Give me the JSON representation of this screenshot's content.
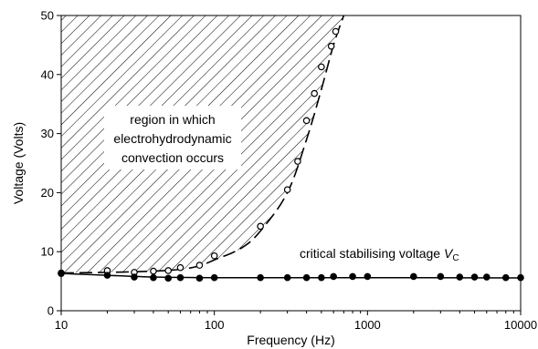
{
  "chart_data": {
    "type": "scatter",
    "title": "",
    "xlabel": "Frequency (Hz)",
    "ylabel": "Voltage (Volts)",
    "xscale": "log",
    "xlim": [
      10,
      10000
    ],
    "ylim": [
      0,
      50
    ],
    "x_ticks": [
      10,
      100,
      1000,
      10000
    ],
    "x_tick_labels": [
      "10",
      "100",
      "1000",
      "10000"
    ],
    "y_ticks": [
      0,
      10,
      20,
      30,
      40,
      50
    ],
    "y_tick_labels": [
      "0",
      "10",
      "20",
      "30",
      "40",
      "50"
    ],
    "grid": false,
    "annotations": {
      "region_lines": [
        "region in which",
        "electrohydrodynamic",
        "convection occurs"
      ],
      "critical_label": "critical stabilising voltage ",
      "critical_symbol": "V",
      "critical_subscript": "C"
    },
    "series": [
      {
        "marker": "open-circle",
        "points": [
          [
            10,
            6.4
          ],
          [
            20,
            6.8
          ],
          [
            30,
            6.5
          ],
          [
            40,
            6.7
          ],
          [
            50,
            6.8
          ],
          [
            60,
            7.3
          ],
          [
            80,
            7.7
          ],
          [
            100,
            9.3
          ],
          [
            200,
            14.3
          ],
          [
            300,
            20.5
          ],
          [
            350,
            25.3
          ],
          [
            400,
            32.2
          ],
          [
            450,
            36.8
          ],
          [
            500,
            41.3
          ],
          [
            580,
            44.8
          ],
          [
            620,
            47.3
          ]
        ]
      },
      {
        "marker": "filled-circle",
        "points": [
          [
            10,
            6.3
          ],
          [
            20,
            6.0
          ],
          [
            30,
            5.7
          ],
          [
            40,
            5.6
          ],
          [
            50,
            5.5
          ],
          [
            60,
            5.6
          ],
          [
            80,
            5.5
          ],
          [
            100,
            5.6
          ],
          [
            200,
            5.6
          ],
          [
            300,
            5.6
          ],
          [
            400,
            5.6
          ],
          [
            500,
            5.6
          ],
          [
            600,
            5.8
          ],
          [
            800,
            5.8
          ],
          [
            1000,
            5.8
          ],
          [
            2000,
            5.8
          ],
          [
            3000,
            5.8
          ],
          [
            4000,
            5.7
          ],
          [
            5000,
            5.7
          ],
          [
            6000,
            5.7
          ],
          [
            8000,
            5.6
          ],
          [
            10000,
            5.6
          ]
        ]
      }
    ],
    "boundary_curve": [
      [
        10,
        6.4
      ],
      [
        20,
        6.5
      ],
      [
        40,
        6.7
      ],
      [
        60,
        7.0
      ],
      [
        80,
        7.6
      ],
      [
        100,
        8.6
      ],
      [
        150,
        10.6
      ],
      [
        200,
        13.5
      ],
      [
        300,
        20.0
      ],
      [
        400,
        29.0
      ],
      [
        500,
        37.5
      ],
      [
        600,
        45.0
      ],
      [
        700,
        50.0
      ]
    ],
    "stability_curve": [
      [
        10,
        6.3
      ],
      [
        20,
        6.0
      ],
      [
        40,
        5.7
      ],
      [
        100,
        5.6
      ],
      [
        1000,
        5.6
      ],
      [
        10000,
        5.55
      ]
    ]
  }
}
